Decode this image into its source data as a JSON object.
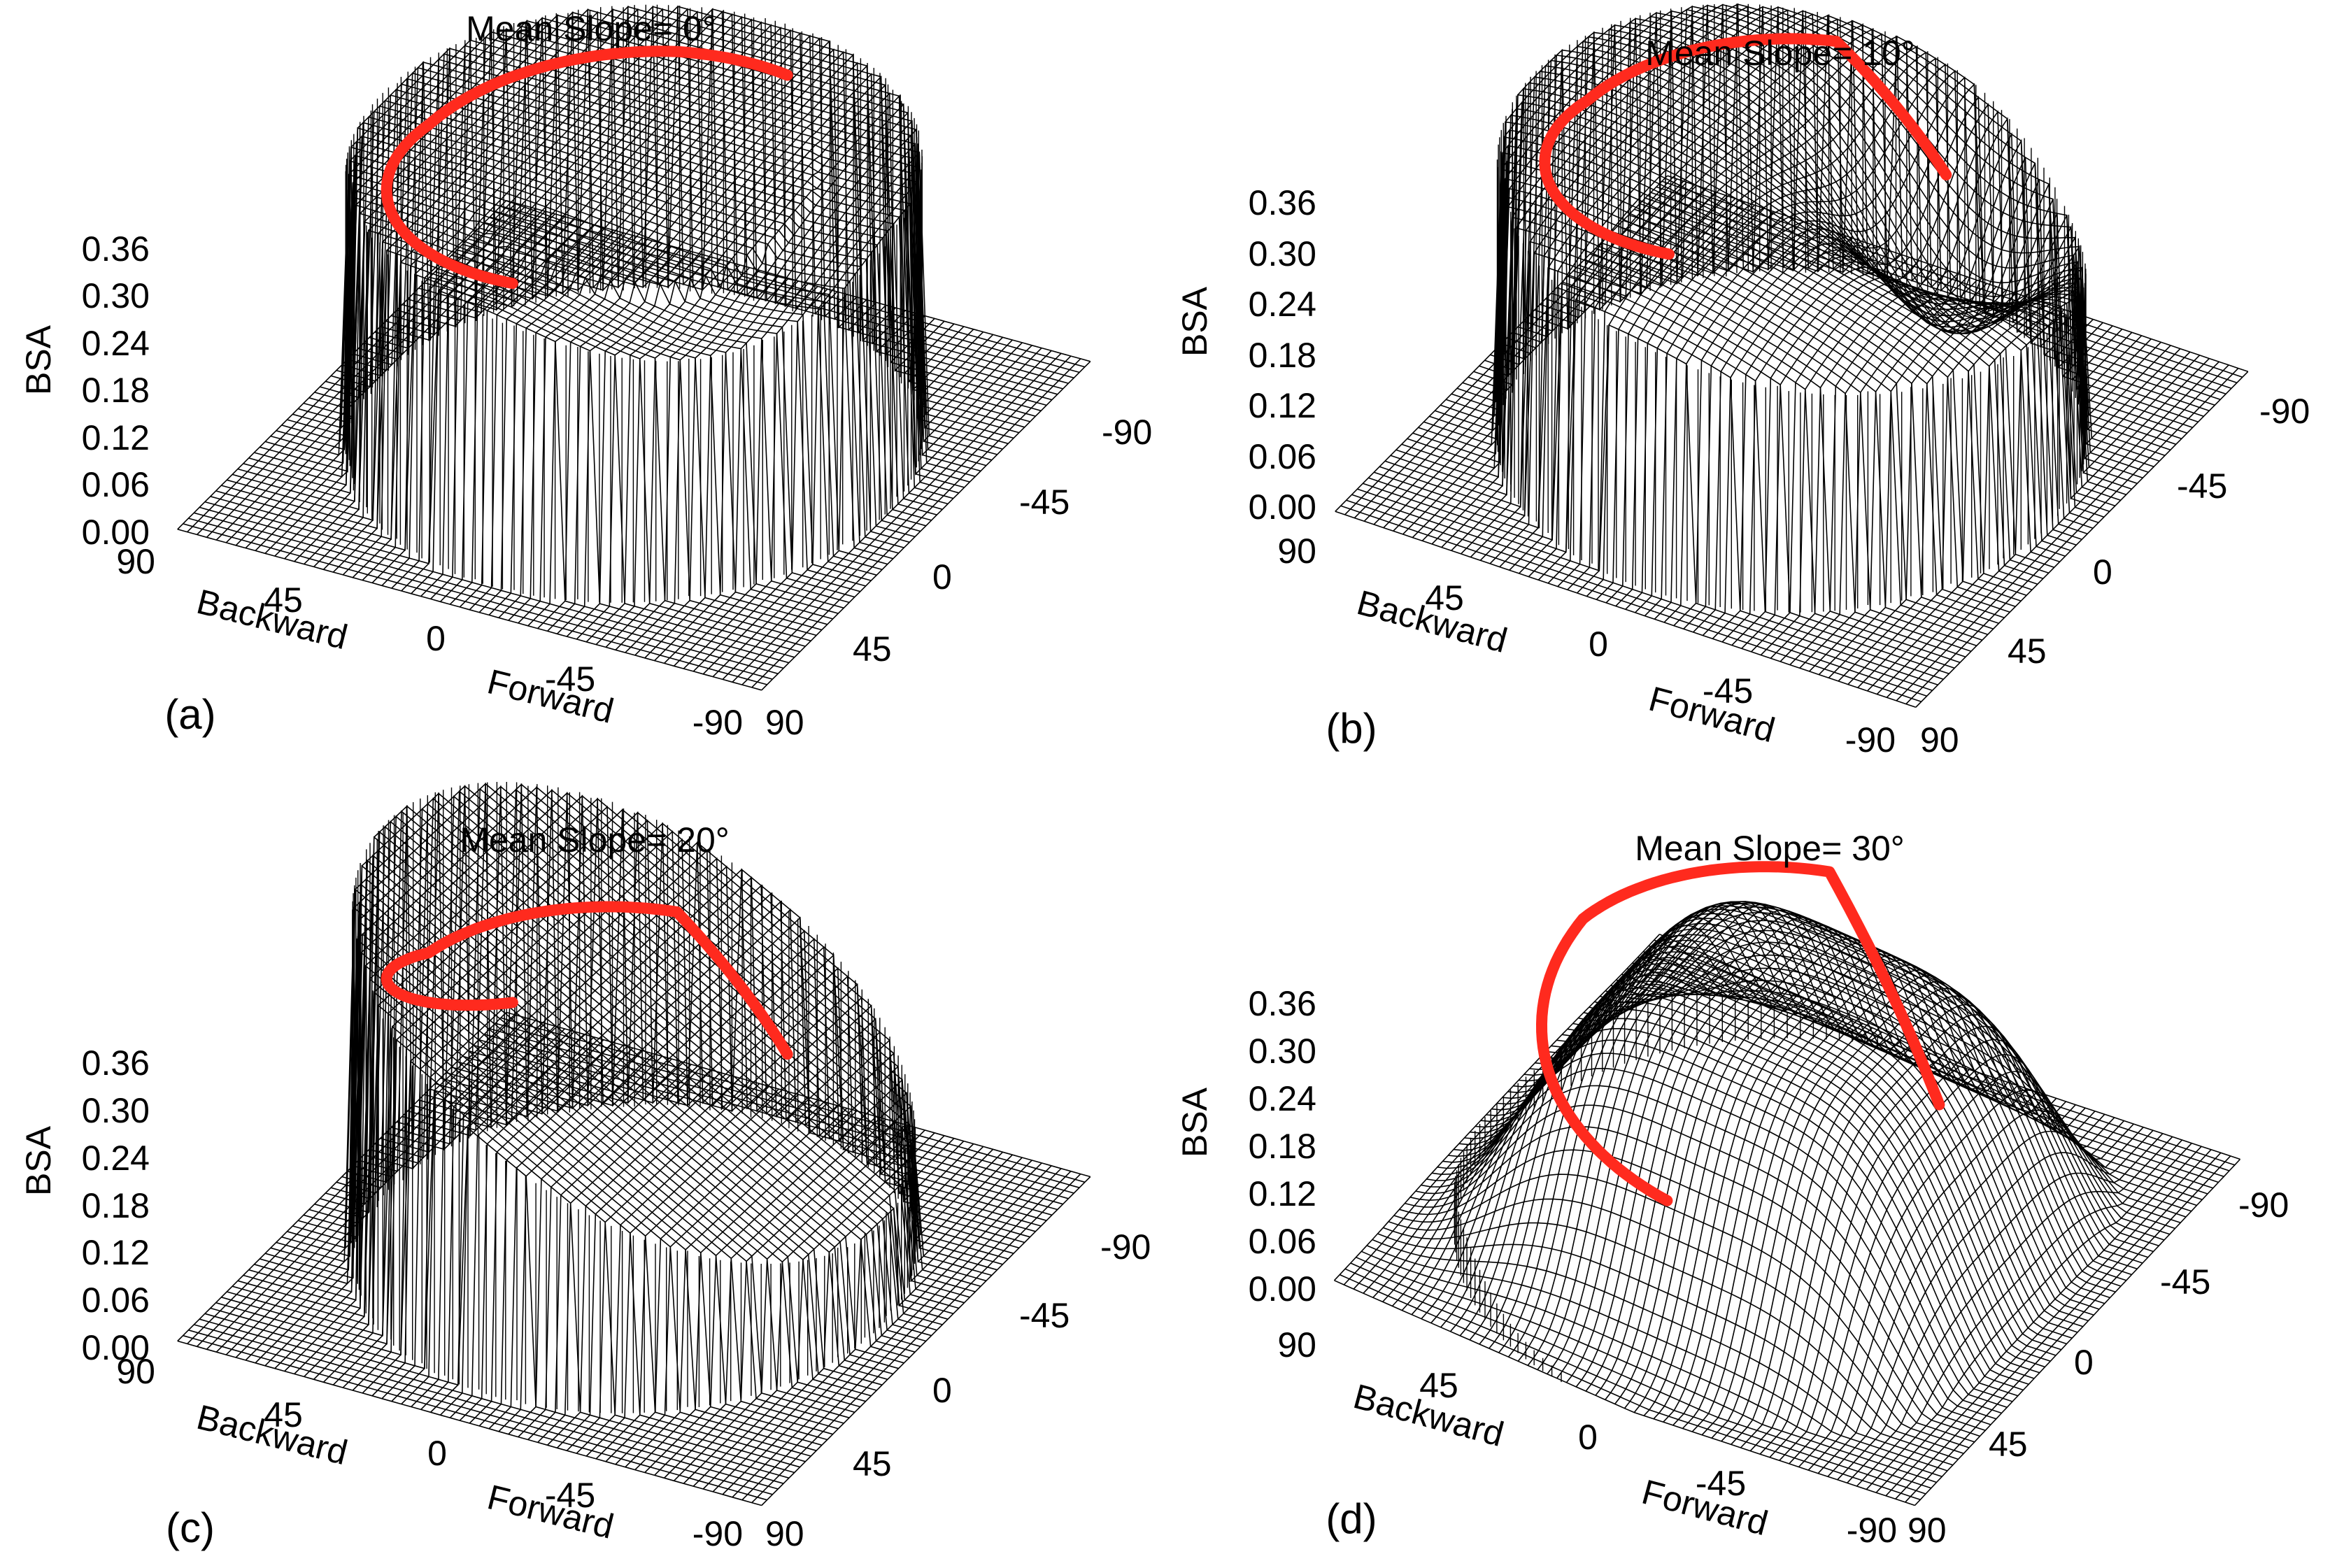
{
  "colors": {
    "ridge_line": "#ff2a1e",
    "mesh": "#000000",
    "background": "#ffffff"
  },
  "chart_data": [
    {
      "type": "surface",
      "panel": "(a)",
      "title": "Mean Slope= 0°",
      "zlabel": "BSA",
      "zlim": [
        0,
        0.36
      ],
      "z_ticks": [
        "0.36",
        "0.30",
        "0.24",
        "0.18",
        "0.12",
        "0.06",
        "0.00"
      ],
      "x_axis": {
        "label_backward": "Backward",
        "label_forward": "Forward",
        "ticks": [
          "90",
          "45",
          "0",
          "-45",
          "-90"
        ]
      },
      "y_axis": {
        "ticks": [
          "-90",
          "-45",
          "0",
          "45",
          "90"
        ]
      },
      "surface": {
        "peak": 0.36,
        "edge_drop_to": 0.0,
        "shape": "flat-topped cylinder"
      },
      "highlight_ridge": {
        "bsa_start": 0.36,
        "bsa_mid": 0.32,
        "bsa_end": 0.33,
        "end_drop_to": 0.33
      }
    },
    {
      "type": "surface",
      "panel": "(b)",
      "title": "Mean Slope= 10°",
      "zlabel": "BSA",
      "zlim": [
        0,
        0.36
      ],
      "z_ticks": [
        "0.36",
        "0.30",
        "0.24",
        "0.18",
        "0.12",
        "0.06",
        "0.00"
      ],
      "x_axis": {
        "label_backward": "Backward",
        "label_forward": "Forward",
        "ticks": [
          "90",
          "45",
          "0",
          "-45",
          "-90"
        ]
      },
      "y_axis": {
        "ticks": [
          "-90",
          "-45",
          "0",
          "45",
          "90"
        ]
      },
      "surface": {
        "peak": 0.36,
        "edge_drop_to": 0.0,
        "shape": "dome tilted to forward"
      },
      "highlight_ridge": {
        "bsa_start": 0.36,
        "bsa_mid": 0.3,
        "bsa_end": 0.3,
        "end_drop_to": 0.18
      }
    },
    {
      "type": "surface",
      "panel": "(c)",
      "title": "Mean Slope= 20°",
      "zlabel": "BSA",
      "zlim": [
        0,
        0.36
      ],
      "z_ticks": [
        "0.36",
        "0.30",
        "0.24",
        "0.18",
        "0.12",
        "0.06",
        "0.00"
      ],
      "x_axis": {
        "label_backward": "Backward",
        "label_forward": "Forward",
        "ticks": [
          "90",
          "45",
          "0",
          "-45",
          "-90"
        ]
      },
      "y_axis": {
        "ticks": [
          "-90",
          "-45",
          "0",
          "45",
          "90"
        ]
      },
      "surface": {
        "peak": 0.48,
        "edge_drop_to": 0.0,
        "shape": "tilted cylinder"
      },
      "highlight_ridge": {
        "bsa_start": 0.48,
        "bsa_mid": 0.3,
        "bsa_end": 0.27,
        "end_drop_to": 0.12
      }
    },
    {
      "type": "surface",
      "panel": "(d)",
      "title": "Mean Slope= 30°",
      "zlabel": "BSA",
      "zlim": [
        0,
        0.36
      ],
      "z_ticks": [
        "0.36",
        "0.30",
        "0.24",
        "0.18",
        "0.12",
        "0.06",
        "0.00"
      ],
      "x_axis": {
        "label_backward": "Backward",
        "label_forward": "Forward",
        "ticks": [
          "90",
          "45",
          "0",
          "-45",
          "-90"
        ]
      },
      "y_axis": {
        "ticks": [
          "-90",
          "-45",
          "0",
          "45",
          "90"
        ]
      },
      "surface": {
        "peak": 0.3,
        "edge_drop_to": 0.0,
        "shape": "low tilted plateau"
      },
      "highlight_ridge": {
        "bsa_start": 0.2,
        "bsa_mid": 0.29,
        "bsa_end": 0.27,
        "end_drop_to": 0.02
      }
    }
  ]
}
